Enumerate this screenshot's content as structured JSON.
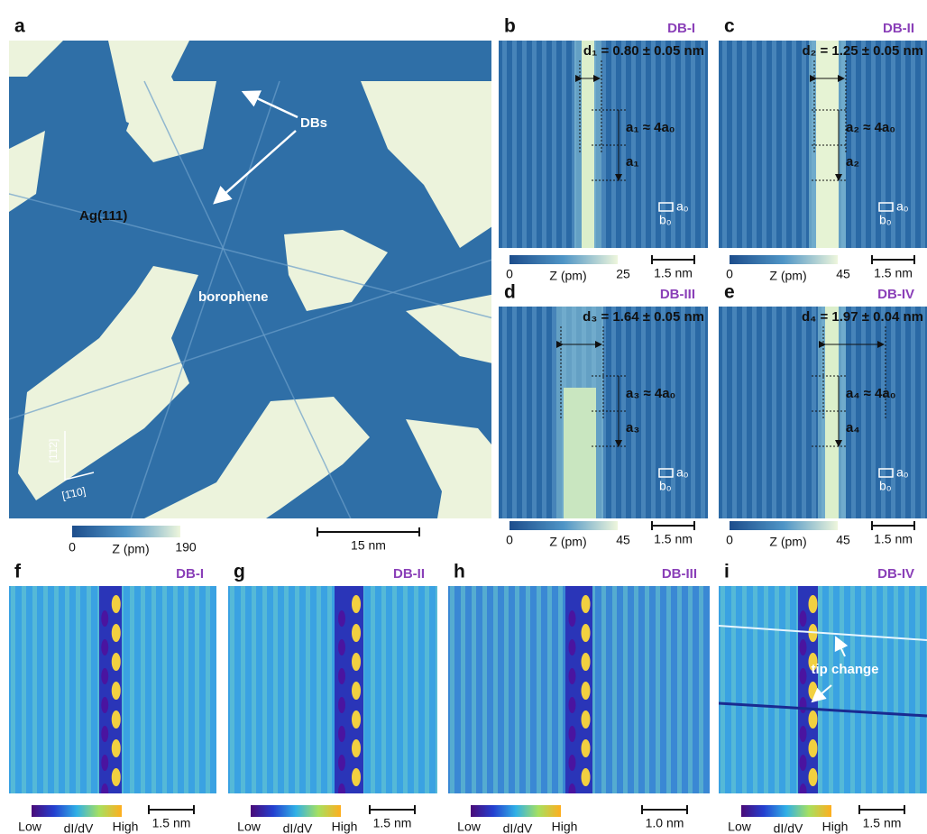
{
  "panels": {
    "a": {
      "label": "a",
      "texts": [
        "DBs",
        "Ag(111)",
        "borophene",
        "[1̄1̄2]",
        "[1̄10]"
      ],
      "colorbar": [
        "0",
        "Z (pm)",
        "190"
      ],
      "scale": "15 nm"
    },
    "b": {
      "label": "b",
      "title": "DB-I",
      "distance": "d₁ = 0.80 ± 0.05 nm",
      "period": "a₁ ≈ 4a₀",
      "period_short": "a₁",
      "cell": [
        "a₀",
        "b₀"
      ],
      "colorbar": [
        "0",
        "Z (pm)",
        "25"
      ],
      "scale": "1.5 nm"
    },
    "c": {
      "label": "c",
      "title": "DB-II",
      "distance": "d₂ = 1.25 ± 0.05 nm",
      "period": "a₂ ≈ 4a₀",
      "period_short": "a₂",
      "cell": [
        "a₀",
        "b₀"
      ],
      "colorbar": [
        "0",
        "Z (pm)",
        "45"
      ],
      "scale": "1.5 nm"
    },
    "d": {
      "label": "d",
      "title": "DB-III",
      "distance": "d₃ = 1.64 ± 0.05 nm",
      "period": "a₃ ≈ 4a₀",
      "period_short": "a₃",
      "cell": [
        "a₀",
        "b₀"
      ],
      "colorbar": [
        "0",
        "Z (pm)",
        "45"
      ],
      "scale": "1.5 nm"
    },
    "e": {
      "label": "e",
      "title": "DB-IV",
      "distance": "d₄ = 1.97 ± 0.04 nm",
      "period": "a₄ ≈ 4a₀",
      "period_short": "a₄",
      "cell": [
        "a₀",
        "b₀"
      ],
      "colorbar": [
        "0",
        "Z (pm)",
        "45"
      ],
      "scale": "1.5 nm"
    },
    "f": {
      "label": "f",
      "title": "DB-I",
      "colorbar": [
        "Low",
        "dI/dV",
        "High"
      ],
      "scale": "1.5 nm"
    },
    "g": {
      "label": "g",
      "title": "DB-II",
      "colorbar": [
        "Low",
        "dI/dV",
        "High"
      ],
      "scale": "1.5 nm"
    },
    "h": {
      "label": "h",
      "title": "DB-III",
      "colorbar": [
        "Low",
        "dI/dV",
        "High"
      ],
      "scale": "1.0 nm"
    },
    "i": {
      "label": "i",
      "title": "DB-IV",
      "colorbar": [
        "Low",
        "dI/dV",
        "High"
      ],
      "scale": "1.5 nm",
      "annotation": "tip change"
    }
  }
}
